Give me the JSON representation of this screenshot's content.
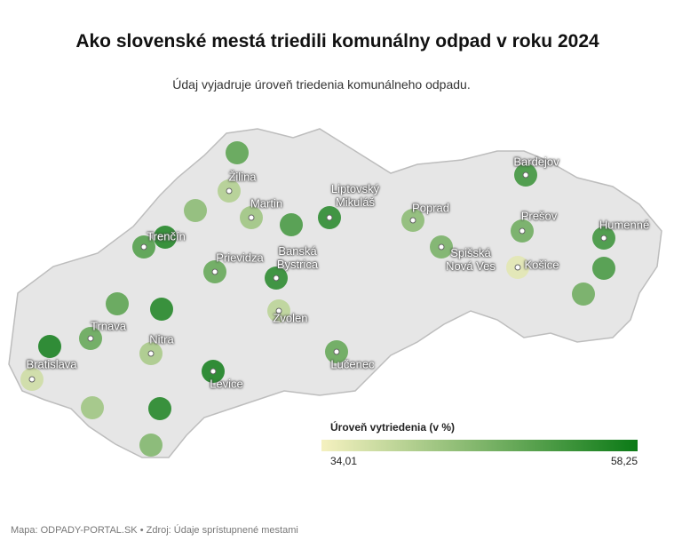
{
  "title": "Ako slovenské mestá triedili komunálny odpad v roku 2024",
  "subtitle": "Údaj vyjadruje úroveň triedenia komunálneho odpadu.",
  "map": {
    "points": [
      {
        "name": null,
        "value": 50
      },
      {
        "name": "Žilina",
        "value": 41
      },
      {
        "name": null,
        "value": 45
      },
      {
        "name": "Martin",
        "value": 43
      },
      {
        "name": null,
        "value": 52
      },
      {
        "name": "Liptovský Mikuláš",
        "value": 55
      },
      {
        "name": "Poprad",
        "value": 45
      },
      {
        "name": "Bardejov",
        "value": 53
      },
      {
        "name": "Prešov",
        "value": 48
      },
      {
        "name": "Humenné",
        "value": 53
      },
      {
        "name": "Spišská Nová Ves",
        "value": 47
      },
      {
        "name": "Košice",
        "value": 36
      },
      {
        "name": null,
        "value": 52
      },
      {
        "name": null,
        "value": 48
      },
      {
        "name": "Trenčín",
        "value": 51
      },
      {
        "name": null,
        "value": 56
      },
      {
        "name": "Prievidza",
        "value": 49
      },
      {
        "name": "Banská Bystrica",
        "value": 55
      },
      {
        "name": null,
        "value": 50
      },
      {
        "name": null,
        "value": 56
      },
      {
        "name": "Zvolen",
        "value": 40
      },
      {
        "name": "Trnava",
        "value": 49
      },
      {
        "name": null,
        "value": 57
      },
      {
        "name": "Nitra",
        "value": 42
      },
      {
        "name": "Lučenec",
        "value": 49
      },
      {
        "name": "Levice",
        "value": 57
      },
      {
        "name": "Bratislava",
        "value": 38
      },
      {
        "name": null,
        "value": 43
      },
      {
        "name": null,
        "value": 56
      },
      {
        "name": null,
        "value": 46
      }
    ],
    "legend": {
      "title": "Úroveň vytriedenia (v %)",
      "min": {
        "value": 34.01,
        "label": "34,01"
      },
      "max": {
        "value": 58.25,
        "label": "58,25"
      },
      "colors": [
        "#f5f1c0",
        "#0b7a16"
      ]
    }
  },
  "footer": "Mapa: ODPADY-PORTAL.SK • Zdroj: Údaje sprístupnené mestami"
}
